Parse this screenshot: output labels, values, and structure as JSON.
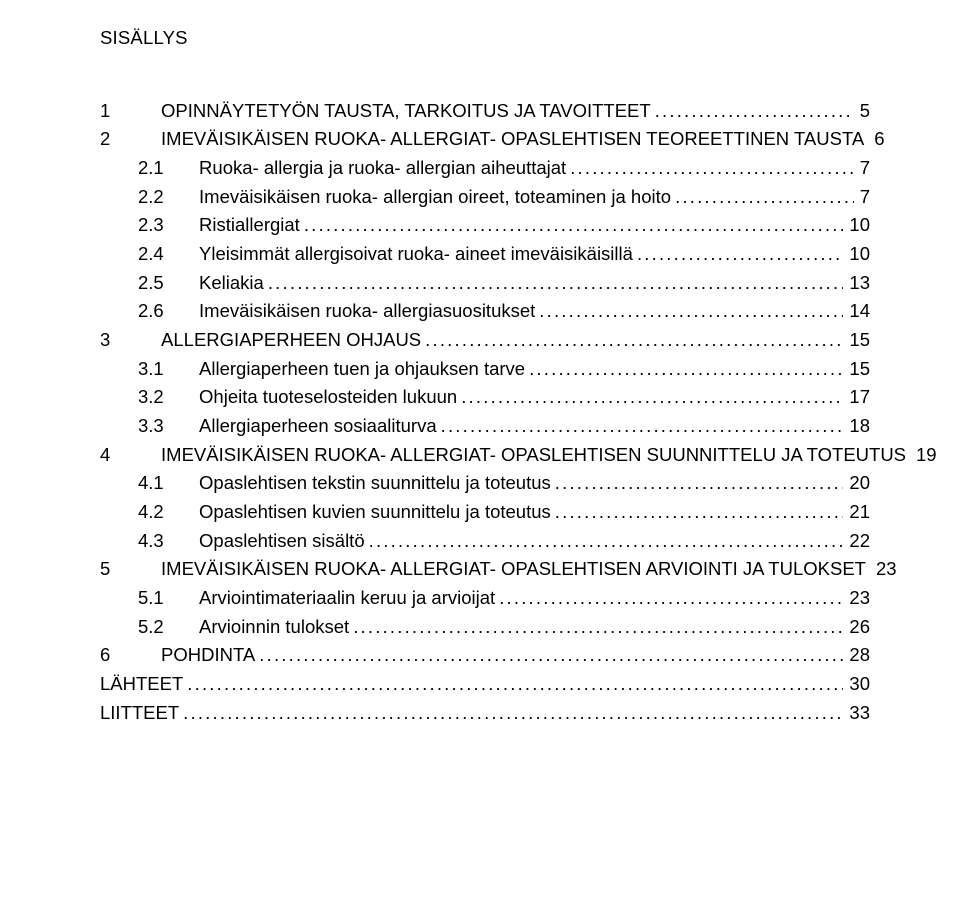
{
  "title": "SISÄLLYS",
  "entries": [
    {
      "indent": 1,
      "num": "1",
      "label": "OPINNÄYTETYÖN TAUSTA, TARKOITUS JA TAVOITTEET",
      "page": "5"
    },
    {
      "indent": 1,
      "num": "2",
      "label": "IMEVÄISIKÄISEN RUOKA- ALLERGIAT- OPASLEHTISEN TEOREETTINEN TAUSTA",
      "page": "6"
    },
    {
      "indent": 2,
      "num": "2.1",
      "label": "Ruoka- allergia ja ruoka- allergian aiheuttajat",
      "page": "7"
    },
    {
      "indent": 2,
      "num": "2.2",
      "label": "Imeväisikäisen ruoka- allergian oireet, toteaminen ja hoito",
      "page": "7"
    },
    {
      "indent": 2,
      "num": "2.3",
      "label": "Ristiallergiat",
      "page": "10"
    },
    {
      "indent": 2,
      "num": "2.4",
      "label": "Yleisimmät allergisoivat ruoka- aineet imeväisikäisillä",
      "page": "10"
    },
    {
      "indent": 2,
      "num": "2.5",
      "label": "Keliakia",
      "page": "13"
    },
    {
      "indent": 2,
      "num": "2.6",
      "label": "Imeväisikäisen ruoka- allergiasuositukset",
      "page": "14"
    },
    {
      "indent": 1,
      "num": "3",
      "label": "ALLERGIAPERHEEN OHJAUS",
      "page": "15"
    },
    {
      "indent": 2,
      "num": "3.1",
      "label": "Allergiaperheen tuen ja ohjauksen tarve",
      "page": "15"
    },
    {
      "indent": 2,
      "num": "3.2",
      "label": "Ohjeita tuoteselosteiden lukuun",
      "page": "17"
    },
    {
      "indent": 2,
      "num": "3.3",
      "label": "Allergiaperheen sosiaaliturva",
      "page": "18"
    },
    {
      "indent": 1,
      "num": "4",
      "label": "IMEVÄISIKÄISEN RUOKA- ALLERGIAT- OPASLEHTISEN SUUNNITTELU JA TOTEUTUS",
      "page": "19"
    },
    {
      "indent": 2,
      "num": "4.1",
      "label": "Opaslehtisen tekstin suunnittelu ja toteutus",
      "page": "20"
    },
    {
      "indent": 2,
      "num": "4.2",
      "label": "Opaslehtisen kuvien suunnittelu ja toteutus",
      "page": "21"
    },
    {
      "indent": 2,
      "num": "4.3",
      "label": "Opaslehtisen sisältö",
      "page": "22"
    },
    {
      "indent": 1,
      "num": "5",
      "label": "IMEVÄISIKÄISEN RUOKA- ALLERGIAT- OPASLEHTISEN ARVIOINTI JA TULOKSET",
      "page": "23"
    },
    {
      "indent": 2,
      "num": "5.1",
      "label": "Arviointimateriaalin keruu ja arvioijat",
      "page": "23"
    },
    {
      "indent": 2,
      "num": "5.2",
      "label": "Arvioinnin tulokset",
      "page": "26"
    },
    {
      "indent": 1,
      "num": "6",
      "label": "POHDINTA",
      "page": "28"
    },
    {
      "indent": 0,
      "num": "",
      "label": "LÄHTEET",
      "page": "30"
    },
    {
      "indent": 0,
      "num": "",
      "label": "LIITTEET",
      "page": "33"
    }
  ]
}
